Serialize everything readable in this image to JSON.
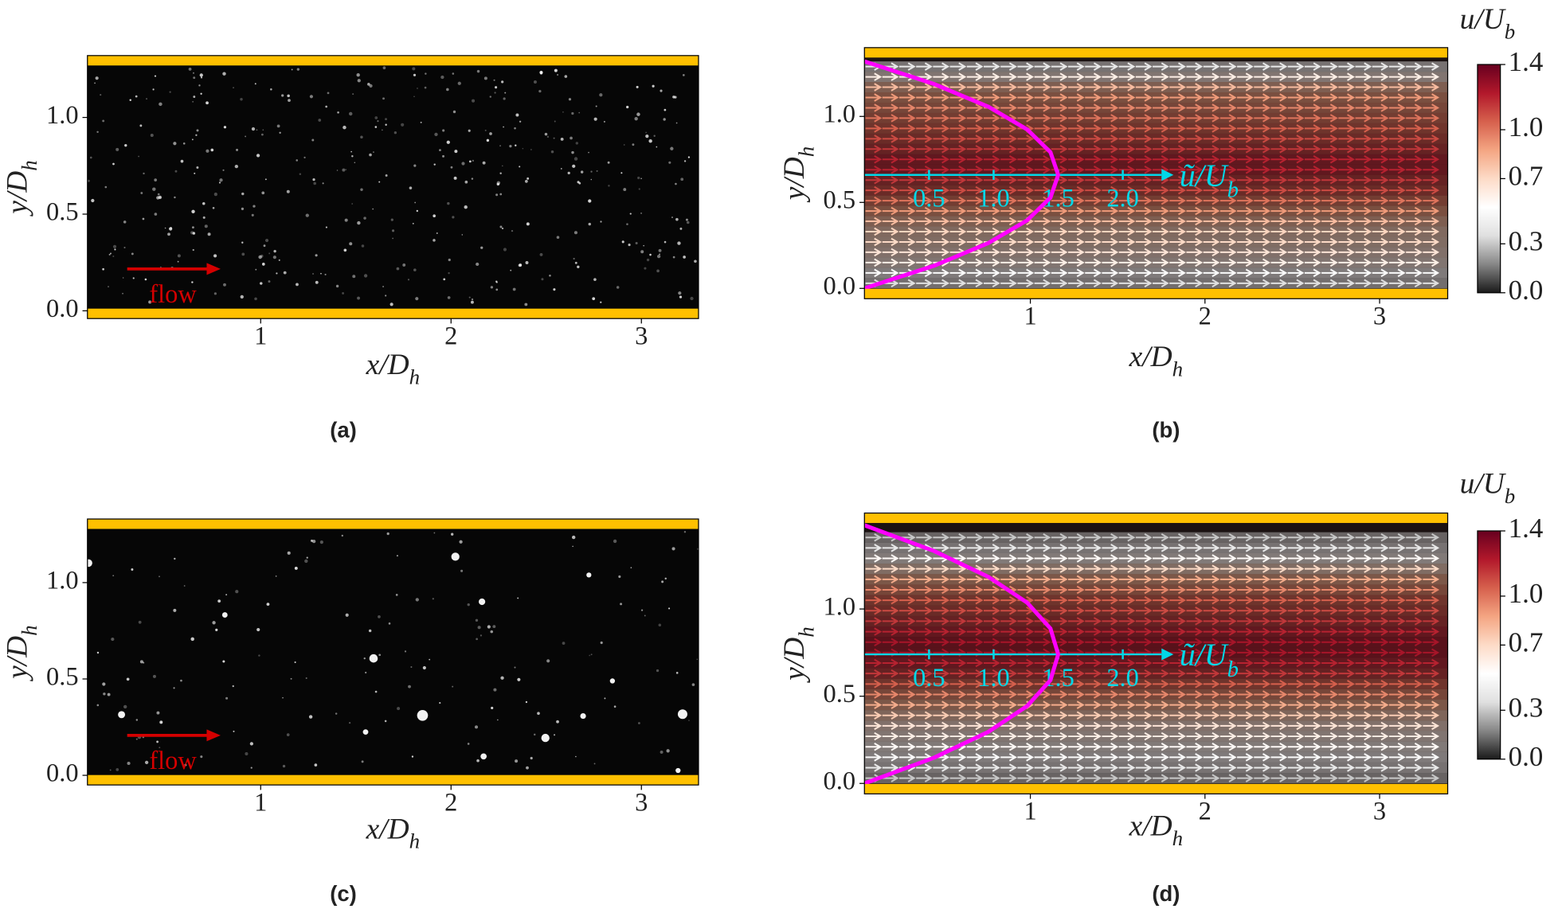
{
  "chart_data": [
    {
      "type": "image",
      "panel_label": "(a)",
      "xlabel": "x/D_h",
      "ylabel": "y/D_h",
      "xlim": [
        0.09,
        3.3
      ],
      "ylim": [
        -0.04,
        1.32
      ],
      "xticks": [
        1,
        2,
        3
      ],
      "yticks": [
        {
          "value": 0,
          "label": "0.0"
        },
        {
          "value": 0.5,
          "label": "0.5"
        },
        {
          "value": 1,
          "label": "1.0"
        }
      ],
      "annotation": "flow"
    },
    {
      "type": "quiver",
      "panel_label": "(b)",
      "xlabel": "x/D_h",
      "ylabel": "y/D_h",
      "xlim": [
        0.05,
        3.39
      ],
      "ylim": [
        -0.06,
        1.4
      ],
      "xticks": [
        1,
        2,
        3
      ],
      "yticks": [
        {
          "value": 0,
          "label": "0.0"
        },
        {
          "value": 0.5,
          "label": "0.5"
        },
        {
          "value": 1,
          "label": "1.0"
        }
      ],
      "field": {
        "y": [
          0.03,
          0.09,
          0.15,
          0.21,
          0.27,
          0.33,
          0.39,
          0.45,
          0.51,
          0.57,
          0.63,
          0.69,
          0.75,
          0.81,
          0.87,
          0.93,
          0.99,
          1.05,
          1.11,
          1.17,
          1.23,
          1.29
        ],
        "u": [
          0.35,
          0.5,
          0.6,
          0.65,
          0.7,
          0.72,
          0.8,
          0.9,
          1.0,
          1.1,
          1.15,
          1.2,
          1.2,
          1.15,
          1.1,
          1.05,
          1.0,
          0.95,
          0.9,
          0.8,
          0.6,
          0.4
        ]
      },
      "profile": {
        "label": "ũ/U_b",
        "y": [
          0,
          0.132,
          0.264,
          0.396,
          0.528,
          0.66,
          0.792,
          0.924,
          1.056,
          1.188,
          1.32
        ],
        "u": [
          0,
          0.54,
          0.96,
          1.26,
          1.44,
          1.5,
          1.44,
          1.26,
          0.96,
          0.54,
          0
        ],
        "ticks": [
          {
            "value": 0.5,
            "label": "0.5"
          },
          {
            "value": 1,
            "label": "1.0"
          },
          {
            "value": 1.5,
            "label": "1.5"
          },
          {
            "value": 2,
            "label": "2.0"
          }
        ]
      },
      "colorbar": {
        "label": "u/U_b",
        "lim": [
          0,
          1.4
        ],
        "ticks": [
          {
            "value": 0,
            "label": "0.0"
          },
          {
            "value": 0.3,
            "label": "0.3"
          },
          {
            "value": 0.7,
            "label": "0.7"
          },
          {
            "value": 1,
            "label": "1.0"
          },
          {
            "value": 1.4,
            "label": "1.4"
          }
        ],
        "colors": [
          "#1a1a1a",
          "#878787",
          "#e0e0e0",
          "#ffffff",
          "#fddbc7",
          "#f4a582",
          "#d6604d",
          "#b2182b",
          "#67001f"
        ]
      }
    },
    {
      "type": "image",
      "panel_label": "(c)",
      "xlabel": "x/D_h",
      "ylabel": "y/D_h",
      "xlim": [
        0.09,
        3.3
      ],
      "ylim": [
        -0.05,
        1.33
      ],
      "xticks": [
        1,
        2,
        3
      ],
      "yticks": [
        {
          "value": 0,
          "label": "0.0"
        },
        {
          "value": 0.5,
          "label": "0.5"
        },
        {
          "value": 1,
          "label": "1.0"
        }
      ],
      "annotation": "flow"
    },
    {
      "type": "quiver",
      "panel_label": "(d)",
      "xlabel": "x/D_h",
      "ylabel": "y/D_h",
      "xlim": [
        0.05,
        3.39
      ],
      "ylim": [
        -0.06,
        1.55
      ],
      "xticks": [
        1,
        2,
        3
      ],
      "yticks": [
        {
          "value": 0,
          "label": "0.0"
        },
        {
          "value": 0.5,
          "label": "0.5"
        },
        {
          "value": 1,
          "label": "1.0"
        }
      ],
      "field": {
        "y": [
          0.03,
          0.09,
          0.15,
          0.21,
          0.27,
          0.33,
          0.39,
          0.45,
          0.51,
          0.57,
          0.63,
          0.69,
          0.75,
          0.81,
          0.87,
          0.93,
          0.99,
          1.05,
          1.11,
          1.17,
          1.23,
          1.29,
          1.35,
          1.41
        ],
        "u": [
          0.3,
          0.4,
          0.5,
          0.55,
          0.6,
          0.65,
          0.75,
          0.85,
          0.95,
          1.05,
          1.15,
          1.2,
          1.25,
          1.25,
          1.2,
          1.15,
          1.1,
          1.05,
          0.95,
          0.85,
          0.7,
          0.55,
          0.4,
          0.3
        ]
      },
      "profile": {
        "label": "ũ/U_b",
        "y": [
          0,
          0.148,
          0.296,
          0.444,
          0.592,
          0.74,
          0.888,
          1.036,
          1.184,
          1.332,
          1.48
        ],
        "u": [
          0,
          0.54,
          0.96,
          1.26,
          1.44,
          1.5,
          1.44,
          1.26,
          0.96,
          0.54,
          0
        ],
        "ticks": [
          {
            "value": 0.5,
            "label": "0.5"
          },
          {
            "value": 1,
            "label": "1.0"
          },
          {
            "value": 1.5,
            "label": "1.5"
          },
          {
            "value": 2,
            "label": "2.0"
          }
        ]
      },
      "colorbar": {
        "label": "u/U_b",
        "lim": [
          0,
          1.4
        ],
        "ticks": [
          {
            "value": 0,
            "label": "0.0"
          },
          {
            "value": 0.3,
            "label": "0.3"
          },
          {
            "value": 0.7,
            "label": "0.7"
          },
          {
            "value": 1,
            "label": "1.0"
          },
          {
            "value": 1.4,
            "label": "1.4"
          }
        ],
        "colors": [
          "#1a1a1a",
          "#878787",
          "#e0e0e0",
          "#ffffff",
          "#fddbc7",
          "#f4a582",
          "#d6604d",
          "#b2182b",
          "#67001f"
        ]
      }
    }
  ]
}
